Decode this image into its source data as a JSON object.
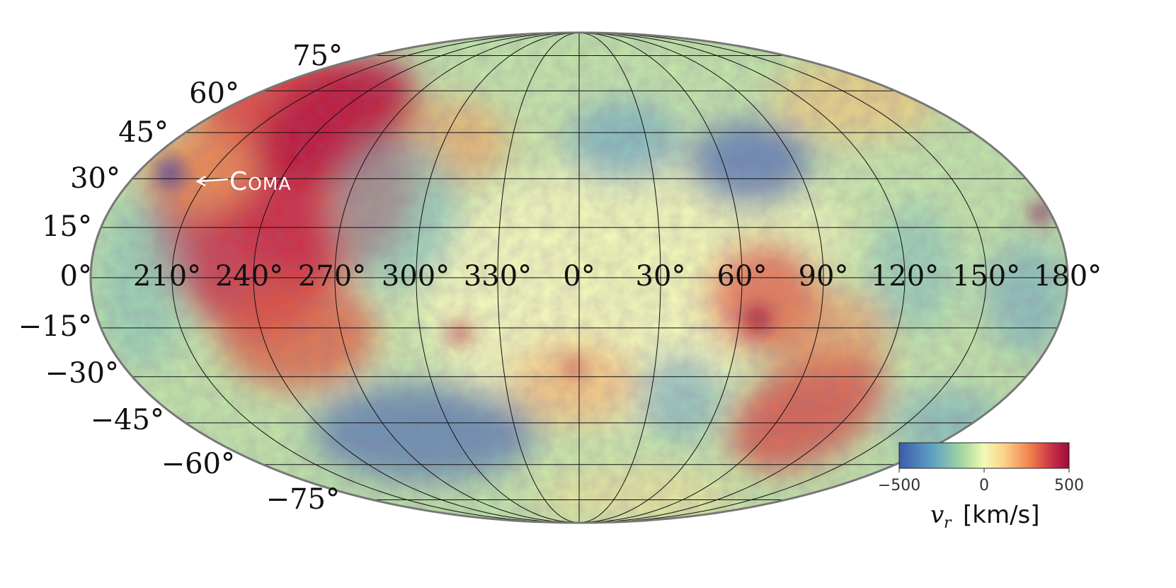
{
  "map": {
    "projection": "mollweide",
    "latitude_labels": [
      "75°",
      "60°",
      "45°",
      "30°",
      "15°",
      "0°",
      "−15°",
      "−30°",
      "−45°",
      "−60°",
      "−75°"
    ],
    "longitude_labels": [
      "210°",
      "240°",
      "270°",
      "300°",
      "330°",
      "0°",
      "30°",
      "60°",
      "90°",
      "120°",
      "150°",
      "180°"
    ],
    "annotation": {
      "label": "Coma",
      "arrow": "left-arrow"
    }
  },
  "colorbar": {
    "colors": [
      "#3b5bab",
      "#5fa3c4",
      "#a9d9a0",
      "#f4f9b7",
      "#fbd187",
      "#ef7b4a",
      "#c92e49",
      "#9c0c3a"
    ],
    "ticks": [
      "−500",
      "0",
      "500"
    ],
    "symbol": "v",
    "subscript": "r",
    "unit": "[km/s]"
  },
  "palette": {
    "frame": "#777777",
    "grid": "#111111"
  }
}
